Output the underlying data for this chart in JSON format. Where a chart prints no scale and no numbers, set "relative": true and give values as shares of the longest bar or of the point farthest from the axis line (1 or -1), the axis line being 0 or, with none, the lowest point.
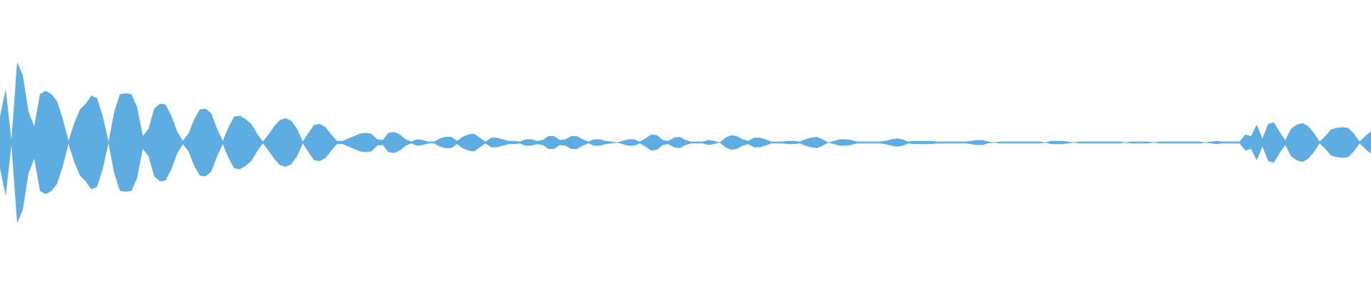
{
  "chart_data": {
    "type": "area",
    "relative": true,
    "categories": [
      null,
      null,
      null,
      null,
      null,
      null,
      null,
      null,
      null,
      null,
      null,
      null,
      null,
      null,
      null,
      null,
      null,
      null,
      null,
      null,
      null,
      null,
      null,
      null,
      null,
      null,
      null,
      null,
      null,
      null,
      null,
      null,
      null,
      null,
      null,
      null,
      null,
      null,
      null,
      null,
      null,
      null,
      null,
      null,
      null,
      null,
      null,
      null,
      null,
      null,
      null,
      null,
      null,
      null,
      null,
      null,
      null,
      null,
      null,
      null,
      null,
      null,
      null,
      null,
      null,
      null,
      null,
      null,
      null,
      null,
      null,
      null,
      null,
      null,
      null,
      null,
      null,
      null,
      null,
      null,
      null,
      null,
      null,
      null,
      null,
      null,
      null,
      null,
      null,
      null,
      null,
      null,
      null,
      null,
      null,
      null,
      null,
      null,
      null,
      null,
      null,
      null,
      null,
      null,
      null,
      null,
      null,
      null,
      null,
      null,
      null,
      null,
      null,
      null,
      null,
      null,
      null,
      null,
      null,
      null,
      null,
      null,
      null,
      null,
      null,
      null,
      null,
      null,
      null,
      null,
      null,
      null,
      null,
      null,
      null,
      null,
      null,
      null,
      null,
      null,
      null,
      null,
      null,
      null,
      null,
      null,
      null,
      null,
      null,
      null,
      null,
      null,
      null,
      null,
      null,
      null,
      null,
      null,
      null,
      null,
      null,
      null,
      null,
      null,
      null,
      null,
      null,
      null,
      null,
      null,
      null,
      null,
      null,
      null,
      null,
      null,
      null,
      null,
      null,
      null,
      null,
      null,
      null,
      null,
      null,
      null,
      null,
      null,
      null,
      null,
      null,
      null,
      null,
      null,
      null,
      null,
      null,
      null,
      null,
      null,
      null,
      null,
      null,
      null,
      null,
      null,
      null,
      null,
      null,
      null,
      null,
      null,
      null,
      null,
      null,
      null,
      null,
      null,
      null,
      null,
      null,
      null,
      null,
      null,
      null,
      null,
      null,
      null,
      null,
      null,
      null,
      null,
      null,
      null,
      null,
      null,
      null,
      null,
      null,
      null,
      null
    ],
    "series": [
      {
        "color": "#5dade2",
        "values": [
          0.32,
          0.66,
          0.03,
          1.0,
          0.83,
          0.38,
          0.2,
          0.6,
          0.64,
          0.6,
          0.51,
          0.29,
          0.02,
          0.24,
          0.41,
          0.48,
          0.58,
          0.55,
          0.32,
          0.01,
          0.38,
          0.6,
          0.61,
          0.6,
          0.44,
          0.08,
          0.17,
          0.42,
          0.48,
          0.47,
          0.33,
          0.14,
          0.02,
          0.11,
          0.29,
          0.41,
          0.42,
          0.36,
          0.17,
          0.02,
          0.19,
          0.32,
          0.33,
          0.29,
          0.23,
          0.11,
          0.01,
          0.1,
          0.2,
          0.28,
          0.3,
          0.27,
          0.17,
          0.01,
          0.12,
          0.22,
          0.23,
          0.19,
          0.1,
          0.02,
          0.02,
          0.05,
          0.08,
          0.11,
          0.12,
          0.11,
          0.04,
          0.03,
          0.12,
          0.13,
          0.1,
          0.04,
          0.01,
          0.04,
          0.03,
          0.01,
          0.01,
          0.05,
          0.07,
          0.07,
          0.02,
          0.07,
          0.1,
          0.11,
          0.06,
          0.01,
          0.06,
          0.06,
          0.04,
          0.02,
          0.02,
          0.01,
          0.04,
          0.04,
          0.02,
          0.03,
          0.08,
          0.08,
          0.03,
          0.04,
          0.08,
          0.08,
          0.04,
          0.01,
          0.04,
          0.04,
          0.02,
          0.01,
          0,
          0.02,
          0.04,
          0.04,
          0.01,
          0.05,
          0.1,
          0.09,
          0.03,
          0.02,
          0.06,
          0.07,
          0.03,
          0.01,
          0.01,
          0.01,
          0.03,
          0.02,
          0,
          0.06,
          0.09,
          0.08,
          0.04,
          0.02,
          0.06,
          0.06,
          0.04,
          0.01,
          0.01,
          0.01,
          0.02,
          0.02,
          0.01,
          0.04,
          0.06,
          0.07,
          0.04,
          0,
          0.02,
          0.04,
          0.04,
          0.03,
          0.01,
          0.01,
          0.01,
          0.01,
          0.01,
          0.02,
          0.04,
          0.05,
          0.04,
          0.01,
          0.02,
          0.02,
          0.02,
          0.02,
          0.01,
          0.01,
          0.01,
          0.01,
          0.01,
          0.01,
          0.02,
          0.03,
          0.03,
          0.01,
          0,
          0.01,
          0.01,
          0.01,
          0.01,
          0.01,
          0.01,
          0.01,
          0.01,
          0,
          0.02,
          0.02,
          0.02,
          0.01,
          0,
          0.01,
          0.01,
          0.01,
          0.01,
          0.01,
          0.01,
          0.01,
          0.01,
          0,
          0.01,
          0.01,
          0.01,
          0.01,
          0,
          0.01,
          0.01,
          0.01,
          0.01,
          0.01,
          0.01,
          0.01,
          0.01,
          0,
          0.01,
          0.02,
          0.01,
          0.01,
          0.01,
          0.01,
          0.1,
          0.08,
          0.22,
          0.05,
          0.23,
          0.25,
          0.13,
          0.03,
          0.17,
          0.22,
          0.24,
          0.2,
          0.12,
          0.01,
          0.08,
          0.16,
          0.18,
          0.19,
          0.18,
          0.11,
          0.01,
          0.08,
          0.14
        ]
      },
      {
        "color": "#5eade2",
        "values": [
          -0.32,
          -0.66,
          -0.03,
          -1.0,
          -0.83,
          -0.38,
          -0.2,
          -0.6,
          -0.64,
          -0.6,
          -0.51,
          -0.29,
          -0.02,
          -0.24,
          -0.41,
          -0.48,
          -0.58,
          -0.55,
          -0.32,
          -0.01,
          -0.38,
          -0.6,
          -0.61,
          -0.6,
          -0.44,
          -0.08,
          -0.17,
          -0.42,
          -0.48,
          -0.47,
          -0.33,
          -0.14,
          -0.02,
          -0.11,
          -0.29,
          -0.41,
          -0.42,
          -0.36,
          -0.17,
          -0.02,
          -0.19,
          -0.32,
          -0.33,
          -0.29,
          -0.23,
          -0.11,
          -0.01,
          -0.1,
          -0.2,
          -0.28,
          -0.3,
          -0.27,
          -0.17,
          -0.01,
          -0.12,
          -0.22,
          -0.23,
          -0.19,
          -0.1,
          -0.02,
          -0.02,
          -0.05,
          -0.08,
          -0.11,
          -0.12,
          -0.11,
          -0.04,
          -0.03,
          -0.12,
          -0.13,
          -0.1,
          -0.04,
          -0.01,
          -0.04,
          -0.03,
          -0.01,
          -0.01,
          -0.05,
          -0.07,
          -0.07,
          -0.02,
          -0.07,
          -0.1,
          -0.11,
          -0.06,
          -0.01,
          -0.06,
          -0.06,
          -0.04,
          -0.02,
          -0.02,
          -0.01,
          -0.04,
          -0.04,
          -0.02,
          -0.03,
          -0.08,
          -0.08,
          -0.03,
          -0.04,
          -0.08,
          -0.08,
          -0.04,
          -0.01,
          -0.04,
          -0.04,
          -0.02,
          -0.01,
          0,
          -0.02,
          -0.04,
          -0.04,
          -0.01,
          -0.05,
          -0.1,
          -0.09,
          -0.03,
          -0.02,
          -0.06,
          -0.07,
          -0.03,
          -0.01,
          -0.01,
          -0.01,
          -0.03,
          -0.02,
          0,
          -0.06,
          -0.09,
          -0.08,
          -0.04,
          -0.02,
          -0.06,
          -0.06,
          -0.04,
          -0.01,
          -0.01,
          -0.01,
          -0.02,
          -0.02,
          -0.01,
          -0.04,
          -0.06,
          -0.07,
          -0.04,
          0,
          -0.02,
          -0.04,
          -0.04,
          -0.03,
          -0.01,
          -0.01,
          -0.01,
          -0.01,
          -0.01,
          -0.02,
          -0.04,
          -0.05,
          -0.04,
          -0.01,
          -0.02,
          -0.02,
          -0.02,
          -0.02,
          -0.01,
          -0.01,
          -0.01,
          -0.01,
          -0.01,
          -0.01,
          -0.02,
          -0.03,
          -0.03,
          -0.01,
          0,
          -0.01,
          -0.01,
          -0.01,
          -0.01,
          -0.01,
          -0.01,
          -0.01,
          -0.01,
          0,
          -0.02,
          -0.02,
          -0.02,
          -0.01,
          0,
          -0.01,
          -0.01,
          -0.01,
          -0.01,
          -0.01,
          -0.01,
          -0.01,
          -0.01,
          0,
          -0.01,
          -0.01,
          -0.01,
          -0.01,
          0,
          -0.01,
          -0.01,
          -0.01,
          -0.01,
          -0.01,
          -0.01,
          -0.01,
          -0.01,
          0,
          -0.01,
          -0.02,
          -0.01,
          -0.01,
          -0.01,
          -0.01,
          -0.1,
          -0.08,
          -0.22,
          -0.05,
          -0.23,
          -0.25,
          -0.13,
          -0.03,
          -0.17,
          -0.22,
          -0.24,
          -0.2,
          -0.12,
          -0.01,
          -0.08,
          -0.16,
          -0.18,
          -0.19,
          -0.18,
          -0.11,
          -0.01,
          -0.08,
          -0.14
        ]
      }
    ]
  }
}
